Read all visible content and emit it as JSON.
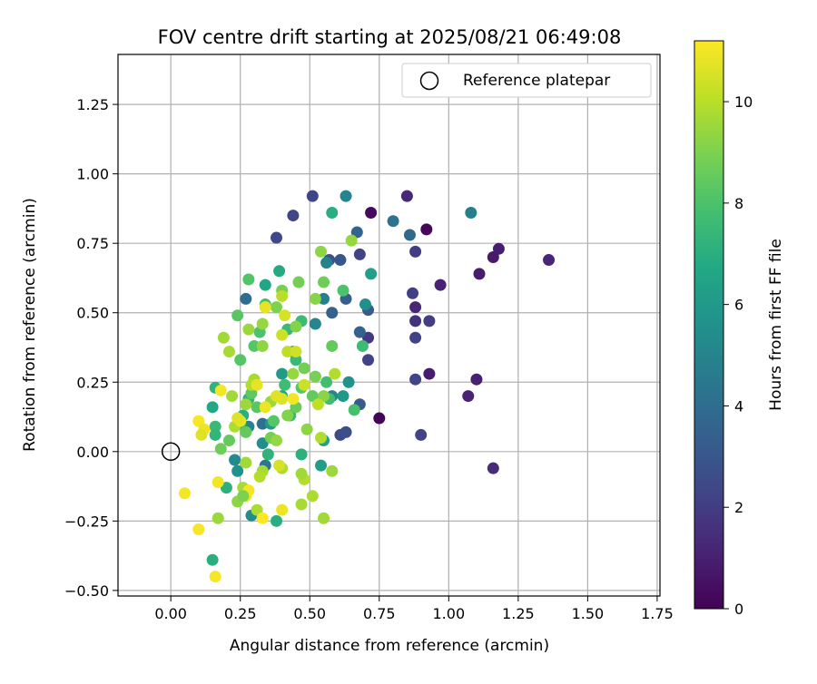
{
  "chart_data": {
    "type": "scatter",
    "title": "FOV centre drift starting at 2025/08/21 06:49:08",
    "xlabel": "Angular distance from reference (arcmin)",
    "ylabel": "Rotation from reference (arcmin)",
    "xlim": [
      -0.19,
      1.76
    ],
    "ylim": [
      -0.52,
      1.43
    ],
    "xticks": [
      "0.00",
      "0.25",
      "0.50",
      "0.75",
      "1.00",
      "1.25",
      "1.50",
      "1.75"
    ],
    "xtick_values": [
      0,
      0.25,
      0.5,
      0.75,
      1.0,
      1.25,
      1.5,
      1.75
    ],
    "yticks": [
      "−0.50",
      "−0.25",
      "0.00",
      "0.25",
      "0.50",
      "0.75",
      "1.00",
      "1.25"
    ],
    "ytick_values": [
      -0.5,
      -0.25,
      0,
      0.25,
      0.5,
      0.75,
      1.0,
      1.25
    ],
    "grid": true,
    "legend": {
      "placement": "top-right",
      "label": "Reference platepar"
    },
    "reference_point": {
      "x": 0.0,
      "y": 0.0
    },
    "colorbar": {
      "label": "Hours from first FF file",
      "colormap": "viridis",
      "range": [
        0,
        11.2
      ],
      "ticks": [
        "0",
        "2",
        "4",
        "6",
        "8",
        "10"
      ],
      "tick_values": [
        0,
        2,
        4,
        6,
        8,
        10
      ]
    },
    "point_format": [
      "x",
      "y",
      "hours"
    ],
    "points": [
      [
        0.72,
        0.86,
        0.3
      ],
      [
        0.92,
        0.8,
        0.2
      ],
      [
        0.75,
        0.12,
        0.1
      ],
      [
        1.16,
        0.7,
        0.8
      ],
      [
        1.18,
        0.73,
        0.9
      ],
      [
        1.11,
        0.64,
        0.9
      ],
      [
        1.36,
        0.69,
        1.2
      ],
      [
        0.97,
        0.6,
        1.1
      ],
      [
        0.93,
        0.28,
        0.9
      ],
      [
        1.1,
        0.26,
        1.0
      ],
      [
        1.07,
        0.2,
        1.1
      ],
      [
        1.16,
        -0.06,
        1.4
      ],
      [
        0.88,
        0.52,
        1.2
      ],
      [
        0.85,
        0.92,
        1.3
      ],
      [
        0.88,
        0.47,
        1.6
      ],
      [
        0.93,
        0.47,
        2.0
      ],
      [
        0.87,
        0.57,
        2.1
      ],
      [
        0.88,
        0.41,
        2.2
      ],
      [
        0.88,
        0.26,
        2.3
      ],
      [
        0.9,
        0.06,
        2.3
      ],
      [
        0.88,
        0.72,
        2.0
      ],
      [
        0.71,
        0.41,
        1.9
      ],
      [
        0.71,
        0.33,
        2.2
      ],
      [
        0.68,
        0.71,
        2.2
      ],
      [
        0.44,
        0.85,
        2.3
      ],
      [
        0.51,
        0.92,
        2.3
      ],
      [
        0.38,
        0.77,
        2.4
      ],
      [
        0.61,
        0.06,
        2.5
      ],
      [
        0.63,
        0.07,
        2.7
      ],
      [
        0.57,
        0.69,
        2.8
      ],
      [
        0.61,
        0.69,
        3.0
      ],
      [
        0.71,
        0.51,
        3.2
      ],
      [
        0.58,
        0.5,
        3.5
      ],
      [
        0.63,
        0.55,
        3.4
      ],
      [
        0.67,
        0.79,
        3.6
      ],
      [
        0.86,
        0.78,
        3.8
      ],
      [
        0.8,
        0.83,
        4.2
      ],
      [
        0.68,
        0.43,
        3.5
      ],
      [
        0.68,
        0.17,
        3.2
      ],
      [
        1.08,
        0.86,
        4.8
      ],
      [
        0.63,
        0.92,
        5.0
      ],
      [
        0.55,
        0.55,
        4.8
      ],
      [
        0.56,
        0.68,
        4.9
      ],
      [
        0.52,
        0.46,
        5.1
      ],
      [
        0.33,
        0.1,
        4.1
      ],
      [
        0.27,
        0.55,
        4.0
      ],
      [
        0.28,
        0.09,
        5.0
      ],
      [
        0.33,
        0.03,
        5.5
      ],
      [
        0.34,
        -0.05,
        4.4
      ],
      [
        0.29,
        -0.23,
        5.4
      ],
      [
        0.24,
        -0.07,
        5.6
      ],
      [
        0.23,
        -0.03,
        5.3
      ],
      [
        0.58,
        0.2,
        5.0
      ],
      [
        0.64,
        0.25,
        5.7
      ],
      [
        0.62,
        0.2,
        6.0
      ],
      [
        0.7,
        0.53,
        5.5
      ],
      [
        0.72,
        0.64,
        6.3
      ],
      [
        0.36,
        0.1,
        6.0
      ],
      [
        0.4,
        0.28,
        6.1
      ],
      [
        0.44,
        0.36,
        6.2
      ],
      [
        0.55,
        0.04,
        6.4
      ],
      [
        0.54,
        -0.05,
        6.2
      ],
      [
        0.4,
        0.2,
        6.5
      ],
      [
        0.34,
        0.6,
        6.6
      ],
      [
        0.39,
        0.65,
        6.8
      ],
      [
        0.58,
        0.86,
        7.0
      ],
      [
        0.47,
        -0.01,
        7.1
      ],
      [
        0.35,
        -0.01,
        7.2
      ],
      [
        0.15,
        -0.39,
        7.0
      ],
      [
        0.16,
        0.23,
        7.2
      ],
      [
        0.15,
        0.16,
        6.7
      ],
      [
        0.16,
        0.09,
        7.5
      ],
      [
        0.16,
        0.06,
        7.3
      ],
      [
        0.2,
        -0.13,
        7.1
      ],
      [
        0.28,
        0.19,
        7.3
      ],
      [
        0.25,
        0.1,
        7.2
      ],
      [
        0.26,
        0.13,
        7.0
      ],
      [
        0.38,
        -0.25,
        7.0
      ],
      [
        0.42,
        0.44,
        7.5
      ],
      [
        0.47,
        0.47,
        7.6
      ],
      [
        0.45,
        0.33,
        7.5
      ],
      [
        0.41,
        0.24,
        7.7
      ],
      [
        0.43,
        0.13,
        7.5
      ],
      [
        0.57,
        0.19,
        7.7
      ],
      [
        0.56,
        0.25,
        7.8
      ],
      [
        0.69,
        0.38,
        7.6
      ],
      [
        0.66,
        0.15,
        7.9
      ],
      [
        0.62,
        0.58,
        8.0
      ],
      [
        0.28,
        0.62,
        8.1
      ],
      [
        0.34,
        0.53,
        7.8
      ],
      [
        0.3,
        0.38,
        8.2
      ],
      [
        0.32,
        0.43,
        8.0
      ],
      [
        0.24,
        0.49,
        8.3
      ],
      [
        0.25,
        0.33,
        8.2
      ],
      [
        0.29,
        0.21,
        8.4
      ],
      [
        0.31,
        0.16,
        8.3
      ],
      [
        0.27,
        0.07,
        8.5
      ],
      [
        0.18,
        0.01,
        8.7
      ],
      [
        0.21,
        0.04,
        8.5
      ],
      [
        0.36,
        0.05,
        8.8
      ],
      [
        0.37,
        0.11,
        8.2
      ],
      [
        0.45,
        0.16,
        8.6
      ],
      [
        0.48,
        0.3,
        8.8
      ],
      [
        0.52,
        0.27,
        8.9
      ],
      [
        0.51,
        0.2,
        8.5
      ],
      [
        0.47,
        0.23,
        8.2
      ],
      [
        0.58,
        0.38,
        8.5
      ],
      [
        0.55,
        0.61,
        8.7
      ],
      [
        0.46,
        0.61,
        8.8
      ],
      [
        0.4,
        0.58,
        8.9
      ],
      [
        0.38,
        0.52,
        9.0
      ],
      [
        0.45,
        0.45,
        9.1
      ],
      [
        0.54,
        0.72,
        9.3
      ],
      [
        0.65,
        0.76,
        9.4
      ],
      [
        0.52,
        0.55,
        9.2
      ],
      [
        0.44,
        0.28,
        9.4
      ],
      [
        0.55,
        0.2,
        9.2
      ],
      [
        0.49,
        0.08,
        9.3
      ],
      [
        0.42,
        0.13,
        9.1
      ],
      [
        0.38,
        0.04,
        9.4
      ],
      [
        0.36,
        0.18,
        9.5
      ],
      [
        0.33,
        0.38,
        9.3
      ],
      [
        0.33,
        0.46,
        9.4
      ],
      [
        0.28,
        0.44,
        9.5
      ],
      [
        0.19,
        0.41,
        9.6
      ],
      [
        0.21,
        0.36,
        9.7
      ],
      [
        0.22,
        0.2,
        9.6
      ],
      [
        0.27,
        0.17,
        9.5
      ],
      [
        0.3,
        0.26,
        9.7
      ],
      [
        0.29,
        0.24,
        9.9
      ],
      [
        0.23,
        0.09,
        9.8
      ],
      [
        0.26,
        -0.13,
        9.7
      ],
      [
        0.27,
        -0.04,
        9.6
      ],
      [
        0.33,
        -0.07,
        9.7
      ],
      [
        0.32,
        -0.09,
        9.9
      ],
      [
        0.31,
        -0.21,
        9.8
      ],
      [
        0.4,
        -0.06,
        9.8
      ],
      [
        0.48,
        -0.1,
        9.9
      ],
      [
        0.47,
        -0.08,
        9.6
      ],
      [
        0.51,
        -0.16,
        9.8
      ],
      [
        0.47,
        -0.19,
        9.7
      ],
      [
        0.55,
        -0.24,
        9.6
      ],
      [
        0.58,
        -0.07,
        9.5
      ],
      [
        0.54,
        0.05,
        9.9
      ],
      [
        0.53,
        0.17,
        10.1
      ],
      [
        0.59,
        0.28,
        9.9
      ],
      [
        0.48,
        0.24,
        10.3
      ],
      [
        0.42,
        0.36,
        10.1
      ],
      [
        0.45,
        0.36,
        10.4
      ],
      [
        0.4,
        0.42,
        10.3
      ],
      [
        0.4,
        0.56,
        10.0
      ],
      [
        0.41,
        0.49,
        10.5
      ],
      [
        0.34,
        0.52,
        10.8
      ],
      [
        0.4,
        0.19,
        10.6
      ],
      [
        0.38,
        0.2,
        10.7
      ],
      [
        0.34,
        0.16,
        10.9
      ],
      [
        0.25,
        0.11,
        10.8
      ],
      [
        0.24,
        0.12,
        10.7
      ],
      [
        0.18,
        0.22,
        11.0
      ],
      [
        0.1,
        0.11,
        11.1
      ],
      [
        0.12,
        0.08,
        10.9
      ],
      [
        0.11,
        0.06,
        10.7
      ],
      [
        0.05,
        -0.15,
        11.0
      ],
      [
        0.1,
        -0.28,
        11.1
      ],
      [
        0.17,
        -0.11,
        11.0
      ],
      [
        0.16,
        -0.45,
        11.1
      ],
      [
        0.27,
        -0.16,
        10.9
      ],
      [
        0.28,
        -0.14,
        11.0
      ],
      [
        0.33,
        -0.24,
        11.2
      ],
      [
        0.4,
        -0.21,
        10.9
      ],
      [
        0.17,
        -0.24,
        9.5
      ],
      [
        0.24,
        -0.18,
        9.3
      ],
      [
        0.26,
        -0.16,
        9.0
      ],
      [
        0.39,
        -0.05,
        10.5
      ],
      [
        0.44,
        0.19,
        11.0
      ],
      [
        0.31,
        0.24,
        10.8
      ]
    ]
  }
}
